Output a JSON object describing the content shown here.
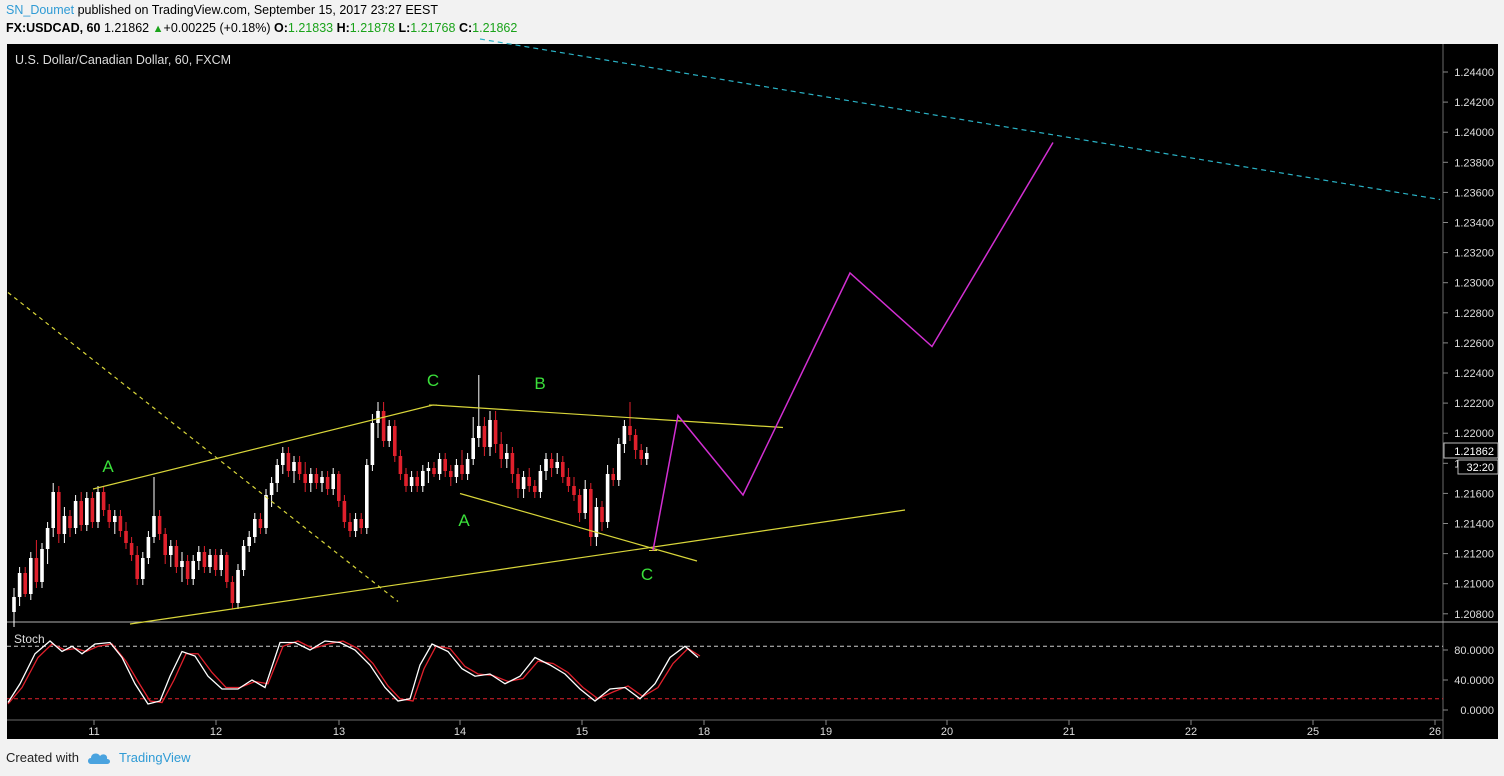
{
  "header": {
    "author": "SN_Doumet",
    "published_text": "published on TradingView.com, September 15, 2017 23:27 EEST",
    "symbol": "FX:USDCAD, 60",
    "last": "1.21862",
    "change": "+0.00225 (+0.18%)",
    "open_label": "O:",
    "open": "1.21833",
    "high_label": "H:",
    "high": "1.21878",
    "low_label": "L:",
    "low": "1.21768",
    "close_label": "C:",
    "close": "1.21862"
  },
  "chart_title": "U.S. Dollar/Canadian Dollar, 60, FXCM",
  "price_axis": {
    "ticks": [
      "1.24400",
      "1.24200",
      "1.24000",
      "1.23800",
      "1.23600",
      "1.23400",
      "1.23200",
      "1.23000",
      "1.22800",
      "1.22600",
      "1.22400",
      "1.22200",
      "1.22000",
      "1.21800",
      "1.21600",
      "1.21400",
      "1.21200",
      "1.21000",
      "1.20800"
    ],
    "current_price": "1.21862",
    "countdown": "32:20"
  },
  "stoch": {
    "label": "Stoch",
    "ticks": [
      "80.0000",
      "40.0000",
      "0.0000"
    ]
  },
  "time_axis": {
    "ticks": [
      "11",
      "12",
      "13",
      "14",
      "15",
      "18",
      "19",
      "20",
      "21",
      "22",
      "25",
      "26"
    ]
  },
  "wave_labels": [
    "A",
    "C",
    "A",
    "B",
    "C"
  ],
  "colors": {
    "background": "#000000",
    "up_candle": "#ffffff",
    "down_candle": "#e0202c",
    "pattern_lines": "#d9d63a",
    "projection": "#d22fd2",
    "resistance": "#2ab3c6",
    "wave_label": "#3adf3a",
    "stoch_k": "#ffffff",
    "stoch_d": "#e0202c"
  },
  "chart_data": {
    "type": "candlestick",
    "symbol": "USDCAD",
    "timeframe": "60",
    "ylim": [
      1.2072,
      1.2454
    ],
    "candles": [
      [
        1.208,
        1.2096,
        1.207,
        1.209
      ],
      [
        1.209,
        1.211,
        1.2084,
        1.2106
      ],
      [
        1.2106,
        1.211,
        1.209,
        1.2092
      ],
      [
        1.2092,
        1.212,
        1.2088,
        1.2116
      ],
      [
        1.2116,
        1.2128,
        1.2096,
        1.21
      ],
      [
        1.21,
        1.2126,
        1.2096,
        1.2122
      ],
      [
        1.2122,
        1.214,
        1.2112,
        1.2136
      ],
      [
        1.2136,
        1.2166,
        1.213,
        1.216
      ],
      [
        1.216,
        1.2164,
        1.2126,
        1.2132
      ],
      [
        1.2132,
        1.215,
        1.2126,
        1.2144
      ],
      [
        1.2144,
        1.2148,
        1.213,
        1.2136
      ],
      [
        1.2136,
        1.2158,
        1.2132,
        1.2154
      ],
      [
        1.2154,
        1.216,
        1.2134,
        1.2138
      ],
      [
        1.2138,
        1.216,
        1.2134,
        1.2156
      ],
      [
        1.2156,
        1.216,
        1.2136,
        1.214
      ],
      [
        1.214,
        1.2164,
        1.2136,
        1.216
      ],
      [
        1.216,
        1.2164,
        1.2144,
        1.2148
      ],
      [
        1.2148,
        1.2152,
        1.2136,
        1.214
      ],
      [
        1.214,
        1.2148,
        1.2132,
        1.2144
      ],
      [
        1.2144,
        1.2148,
        1.213,
        1.2134
      ],
      [
        1.2134,
        1.214,
        1.2122,
        1.2126
      ],
      [
        1.2126,
        1.213,
        1.2114,
        1.2118
      ],
      [
        1.2118,
        1.2124,
        1.2098,
        1.2102
      ],
      [
        1.2102,
        1.212,
        1.2098,
        1.2116
      ],
      [
        1.2116,
        1.2134,
        1.2112,
        1.213
      ],
      [
        1.213,
        1.217,
        1.2126,
        1.2144
      ],
      [
        1.2144,
        1.2148,
        1.2128,
        1.2132
      ],
      [
        1.2132,
        1.2136,
        1.2112,
        1.2118
      ],
      [
        1.2118,
        1.2128,
        1.211,
        1.2124
      ],
      [
        1.2124,
        1.2128,
        1.2106,
        1.211
      ],
      [
        1.211,
        1.212,
        1.21,
        1.2114
      ],
      [
        1.2114,
        1.2118,
        1.2098,
        1.2102
      ],
      [
        1.2102,
        1.2118,
        1.2098,
        1.2114
      ],
      [
        1.2114,
        1.2124,
        1.2108,
        1.212
      ],
      [
        1.212,
        1.2124,
        1.2106,
        1.211
      ],
      [
        1.211,
        1.2122,
        1.2106,
        1.2118
      ],
      [
        1.2118,
        1.2122,
        1.2104,
        1.2108
      ],
      [
        1.2108,
        1.2122,
        1.2104,
        1.2118
      ],
      [
        1.2118,
        1.212,
        1.2096,
        1.21
      ],
      [
        1.21,
        1.2104,
        1.2082,
        1.2086
      ],
      [
        1.2086,
        1.2112,
        1.2082,
        1.2108
      ],
      [
        1.2108,
        1.2128,
        1.2104,
        1.2124
      ],
      [
        1.2124,
        1.2134,
        1.212,
        1.213
      ],
      [
        1.213,
        1.2146,
        1.2126,
        1.2142
      ],
      [
        1.2142,
        1.2146,
        1.2132,
        1.2136
      ],
      [
        1.2136,
        1.2162,
        1.2132,
        1.2158
      ],
      [
        1.2158,
        1.217,
        1.215,
        1.2166
      ],
      [
        1.2166,
        1.2182,
        1.216,
        1.2178
      ],
      [
        1.2178,
        1.219,
        1.2172,
        1.2186
      ],
      [
        1.2186,
        1.219,
        1.217,
        1.2174
      ],
      [
        1.2174,
        1.2184,
        1.2166,
        1.218
      ],
      [
        1.218,
        1.2184,
        1.2168,
        1.2172
      ],
      [
        1.2172,
        1.218,
        1.216,
        1.2166
      ],
      [
        1.2166,
        1.2176,
        1.216,
        1.2172
      ],
      [
        1.2172,
        1.2176,
        1.2162,
        1.2166
      ],
      [
        1.2166,
        1.2174,
        1.216,
        1.217
      ],
      [
        1.217,
        1.2174,
        1.2158,
        1.2162
      ],
      [
        1.2162,
        1.2176,
        1.2158,
        1.2172
      ],
      [
        1.2172,
        1.2174,
        1.215,
        1.2154
      ],
      [
        1.2154,
        1.2158,
        1.2136,
        1.214
      ],
      [
        1.214,
        1.2146,
        1.213,
        1.2134
      ],
      [
        1.2134,
        1.2146,
        1.213,
        1.2142
      ],
      [
        1.2142,
        1.2146,
        1.2132,
        1.2136
      ],
      [
        1.2136,
        1.2182,
        1.2132,
        1.2178
      ],
      [
        1.2178,
        1.2212,
        1.2174,
        1.2206
      ],
      [
        1.2206,
        1.222,
        1.2196,
        1.2214
      ],
      [
        1.2214,
        1.222,
        1.219,
        1.2194
      ],
      [
        1.2194,
        1.2208,
        1.219,
        1.2204
      ],
      [
        1.2204,
        1.2208,
        1.218,
        1.2184
      ],
      [
        1.2184,
        1.2188,
        1.2168,
        1.2172
      ],
      [
        1.2172,
        1.2176,
        1.216,
        1.2164
      ],
      [
        1.2164,
        1.2174,
        1.216,
        1.217
      ],
      [
        1.217,
        1.2174,
        1.216,
        1.2164
      ],
      [
        1.2164,
        1.2178,
        1.216,
        1.2174
      ],
      [
        1.2174,
        1.218,
        1.2166,
        1.2176
      ],
      [
        1.2176,
        1.218,
        1.217,
        1.2172
      ],
      [
        1.2172,
        1.2186,
        1.2168,
        1.2182
      ],
      [
        1.2182,
        1.2186,
        1.217,
        1.2174
      ],
      [
        1.2174,
        1.2178,
        1.2164,
        1.217
      ],
      [
        1.217,
        1.2182,
        1.2166,
        1.2178
      ],
      [
        1.2178,
        1.2188,
        1.2168,
        1.2172
      ],
      [
        1.2172,
        1.2186,
        1.2168,
        1.2182
      ],
      [
        1.2182,
        1.221,
        1.2178,
        1.2196
      ],
      [
        1.2196,
        1.2238,
        1.219,
        1.2204
      ],
      [
        1.2204,
        1.221,
        1.2184,
        1.219
      ],
      [
        1.219,
        1.2214,
        1.2184,
        1.2208
      ],
      [
        1.2208,
        1.2214,
        1.2186,
        1.2192
      ],
      [
        1.2192,
        1.22,
        1.2176,
        1.2182
      ],
      [
        1.2182,
        1.2192,
        1.2176,
        1.2186
      ],
      [
        1.2186,
        1.219,
        1.2166,
        1.2172
      ],
      [
        1.2172,
        1.2176,
        1.2156,
        1.2162
      ],
      [
        1.2162,
        1.2174,
        1.2156,
        1.217
      ],
      [
        1.217,
        1.2176,
        1.216,
        1.2164
      ],
      [
        1.2164,
        1.2168,
        1.2156,
        1.216
      ],
      [
        1.216,
        1.2178,
        1.2156,
        1.2174
      ],
      [
        1.2174,
        1.2186,
        1.2168,
        1.2182
      ],
      [
        1.2182,
        1.2186,
        1.217,
        1.2176
      ],
      [
        1.2176,
        1.2186,
        1.2172,
        1.218
      ],
      [
        1.218,
        1.2184,
        1.2166,
        1.217
      ],
      [
        1.217,
        1.2176,
        1.216,
        1.2164
      ],
      [
        1.2164,
        1.217,
        1.2154,
        1.2158
      ],
      [
        1.2158,
        1.2162,
        1.214,
        1.2146
      ],
      [
        1.2146,
        1.2168,
        1.2142,
        1.2162
      ],
      [
        1.2162,
        1.2166,
        1.2124,
        1.213
      ],
      [
        1.213,
        1.2156,
        1.2124,
        1.215
      ],
      [
        1.215,
        1.2154,
        1.2134,
        1.214
      ],
      [
        1.214,
        1.2178,
        1.2136,
        1.2172
      ],
      [
        1.2172,
        1.2176,
        1.2164,
        1.2168
      ],
      [
        1.2168,
        1.2196,
        1.2164,
        1.2192
      ],
      [
        1.2192,
        1.2208,
        1.2186,
        1.2204
      ],
      [
        1.2204,
        1.222,
        1.2194,
        1.2198
      ],
      [
        1.2198,
        1.2202,
        1.2182,
        1.2188
      ],
      [
        1.2188,
        1.2192,
        1.2178,
        1.2182
      ],
      [
        1.2182,
        1.219,
        1.2178,
        1.2186
      ]
    ],
    "trendlines": [
      {
        "style": "yellow",
        "points": [
          [
            1.2162,
            93
          ],
          [
            1.2218,
            433
          ],
          [
            1.2203,
            783
          ]
        ]
      },
      {
        "style": "yellow",
        "points": [
          [
            1.2159,
            460
          ],
          [
            1.2114,
            697
          ]
        ]
      },
      {
        "style": "yellow",
        "points": [
          [
            1.2072,
            130
          ],
          [
            1.2148,
            905
          ]
        ]
      },
      {
        "style": "yellow-dashed",
        "points": [
          [
            1.2293,
            8
          ],
          [
            1.2087,
            398
          ]
        ]
      },
      {
        "style": "cyan-dashed",
        "points": [
          [
            1.2462,
            480
          ],
          [
            1.2355,
            1440
          ]
        ]
      }
    ],
    "projection": [
      [
        1.2121,
        653
      ],
      [
        1.2211,
        678
      ],
      [
        1.2158,
        743
      ],
      [
        1.2306,
        850
      ],
      [
        1.2257,
        932
      ],
      [
        1.2393,
        1053
      ]
    ],
    "stoch_k": [
      [
        8,
        10
      ],
      [
        20,
        35
      ],
      [
        35,
        75
      ],
      [
        50,
        92
      ],
      [
        62,
        78
      ],
      [
        72,
        85
      ],
      [
        82,
        75
      ],
      [
        95,
        88
      ],
      [
        110,
        90
      ],
      [
        122,
        70
      ],
      [
        135,
        35
      ],
      [
        148,
        8
      ],
      [
        160,
        12
      ],
      [
        170,
        45
      ],
      [
        182,
        78
      ],
      [
        195,
        72
      ],
      [
        208,
        45
      ],
      [
        222,
        28
      ],
      [
        238,
        28
      ],
      [
        252,
        40
      ],
      [
        265,
        30
      ],
      [
        280,
        90
      ],
      [
        295,
        90
      ],
      [
        310,
        80
      ],
      [
        325,
        92
      ],
      [
        340,
        90
      ],
      [
        355,
        80
      ],
      [
        370,
        60
      ],
      [
        385,
        30
      ],
      [
        398,
        12
      ],
      [
        410,
        15
      ],
      [
        420,
        60
      ],
      [
        432,
        88
      ],
      [
        448,
        78
      ],
      [
        462,
        55
      ],
      [
        475,
        45
      ],
      [
        490,
        48
      ],
      [
        505,
        35
      ],
      [
        520,
        45
      ],
      [
        535,
        70
      ],
      [
        550,
        60
      ],
      [
        565,
        48
      ],
      [
        580,
        28
      ],
      [
        595,
        12
      ],
      [
        610,
        28
      ],
      [
        625,
        30
      ],
      [
        640,
        15
      ],
      [
        655,
        35
      ],
      [
        670,
        70
      ],
      [
        685,
        85
      ],
      [
        698,
        70
      ]
    ],
    "stoch_d": [
      [
        8,
        8
      ],
      [
        22,
        30
      ],
      [
        38,
        70
      ],
      [
        52,
        88
      ],
      [
        65,
        80
      ],
      [
        76,
        82
      ],
      [
        86,
        78
      ],
      [
        98,
        85
      ],
      [
        112,
        88
      ],
      [
        126,
        65
      ],
      [
        138,
        38
      ],
      [
        150,
        12
      ],
      [
        162,
        10
      ],
      [
        174,
        40
      ],
      [
        186,
        75
      ],
      [
        198,
        75
      ],
      [
        212,
        50
      ],
      [
        226,
        30
      ],
      [
        240,
        30
      ],
      [
        255,
        38
      ],
      [
        268,
        35
      ],
      [
        283,
        85
      ],
      [
        298,
        92
      ],
      [
        313,
        82
      ],
      [
        328,
        88
      ],
      [
        343,
        92
      ],
      [
        358,
        82
      ],
      [
        373,
        62
      ],
      [
        388,
        32
      ],
      [
        400,
        15
      ],
      [
        413,
        12
      ],
      [
        424,
        55
      ],
      [
        436,
        85
      ],
      [
        450,
        82
      ],
      [
        465,
        58
      ],
      [
        478,
        48
      ],
      [
        493,
        46
      ],
      [
        508,
        38
      ],
      [
        523,
        42
      ],
      [
        538,
        65
      ],
      [
        553,
        62
      ],
      [
        568,
        50
      ],
      [
        583,
        30
      ],
      [
        598,
        15
      ],
      [
        613,
        24
      ],
      [
        628,
        32
      ],
      [
        643,
        18
      ],
      [
        658,
        30
      ],
      [
        673,
        62
      ],
      [
        688,
        82
      ],
      [
        700,
        72
      ]
    ]
  }
}
